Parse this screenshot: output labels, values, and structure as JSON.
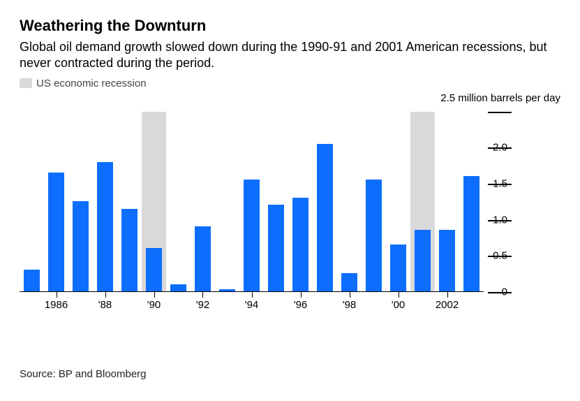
{
  "title": "Weathering the Downturn",
  "subtitle": "Global oil demand growth slowed down during the 1990-91 and 2001 American recessions, but never contracted during the period.",
  "legend": {
    "label": "US economic recession",
    "color": "#d9d9d9"
  },
  "source": "Source: BP and Bloomberg",
  "chart": {
    "type": "bar",
    "years": [
      1985,
      1986,
      1987,
      1988,
      1989,
      1990,
      1991,
      1992,
      1993,
      1994,
      1995,
      1996,
      1997,
      1998,
      1999,
      2000,
      2001,
      2002,
      2003
    ],
    "values": [
      0.3,
      1.65,
      1.25,
      1.8,
      1.15,
      0.6,
      0.1,
      0.9,
      0.03,
      1.55,
      1.2,
      1.3,
      2.05,
      0.25,
      1.55,
      0.65,
      0.85,
      0.85,
      1.6
    ],
    "recessions": [
      {
        "start_year": 1990,
        "end_year": 1991
      },
      {
        "start_year": 2001,
        "end_year": 2002
      }
    ],
    "bar_color": "#0d6efd",
    "recession_color": "#d9d9d9",
    "axis_color": "#000000",
    "text_color": "#000000",
    "background_color": "#ffffff",
    "y": {
      "min": 0,
      "max": 2.5,
      "ticks": [
        0,
        0.5,
        1.0,
        1.5,
        2.0,
        2.5
      ],
      "top_label": "2.5 million barrels per day",
      "other_labels": [
        "0",
        "0.5",
        "1.0",
        "1.5",
        "2.0"
      ]
    },
    "x": {
      "ticks": [
        {
          "year": 1986,
          "label": "1986"
        },
        {
          "year": 1988,
          "label": "'88"
        },
        {
          "year": 1990,
          "label": "'90"
        },
        {
          "year": 1992,
          "label": "'92"
        },
        {
          "year": 1994,
          "label": "'94"
        },
        {
          "year": 1996,
          "label": "'96"
        },
        {
          "year": 1998,
          "label": "'98"
        },
        {
          "year": 2000,
          "label": "'00"
        },
        {
          "year": 2002,
          "label": "2002"
        }
      ]
    },
    "bar_width_ratio": 0.66,
    "label_fontsize": 15,
    "title_fontsize": 22,
    "subtitle_fontsize": 18
  }
}
